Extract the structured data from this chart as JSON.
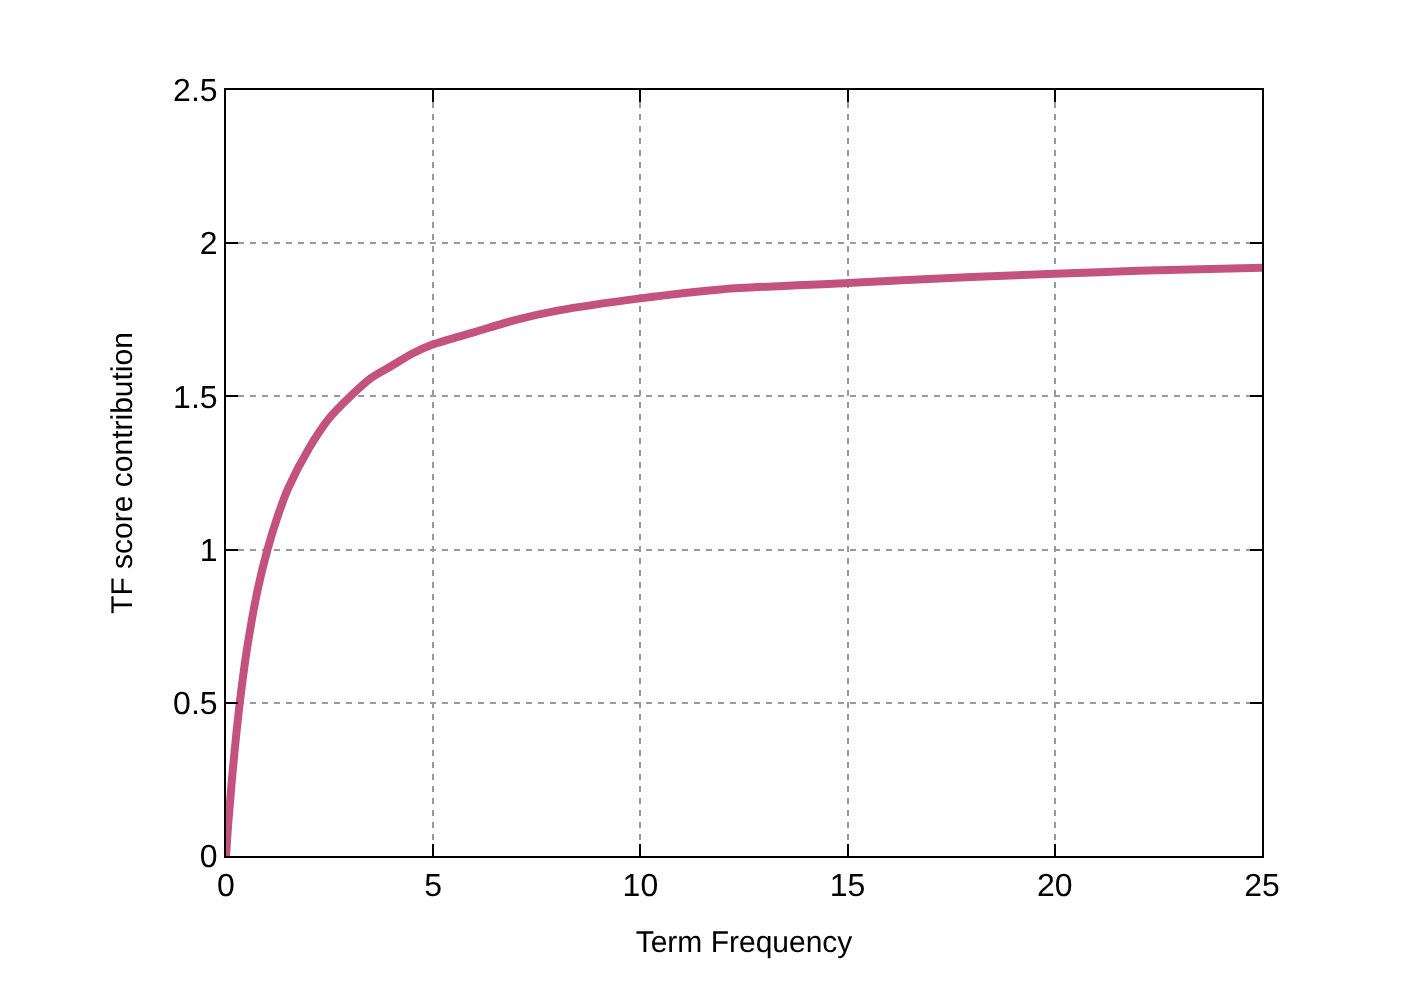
{
  "chart_data": {
    "type": "line",
    "xlabel": "Term Frequency",
    "ylabel": "TF score contribution",
    "series": [
      {
        "color": "#c4527f",
        "x": [
          0,
          0.05,
          0.1,
          0.15,
          0.25,
          0.35,
          0.5,
          0.75,
          1,
          1.25,
          1.5,
          2,
          2.5,
          3,
          3.5,
          4,
          4.5,
          5,
          6,
          7,
          8,
          10,
          12,
          15,
          18,
          20,
          22,
          25
        ],
        "values": [
          0,
          0.1,
          0.18,
          0.26,
          0.4,
          0.52,
          0.67,
          0.86,
          1.0,
          1.11,
          1.2,
          1.33,
          1.43,
          1.5,
          1.56,
          1.6,
          1.64,
          1.67,
          1.71,
          1.75,
          1.78,
          1.82,
          1.85,
          1.87,
          1.89,
          1.9,
          1.91,
          1.92
        ]
      }
    ],
    "xlim": [
      0,
      25
    ],
    "xticks": [
      0,
      5,
      10,
      15,
      20,
      25
    ],
    "ylim": [
      0,
      2.5
    ],
    "yticks": [
      0,
      0.5,
      1,
      1.5,
      2,
      2.5
    ],
    "grid": true,
    "marker": "none",
    "line_style": "solid"
  }
}
